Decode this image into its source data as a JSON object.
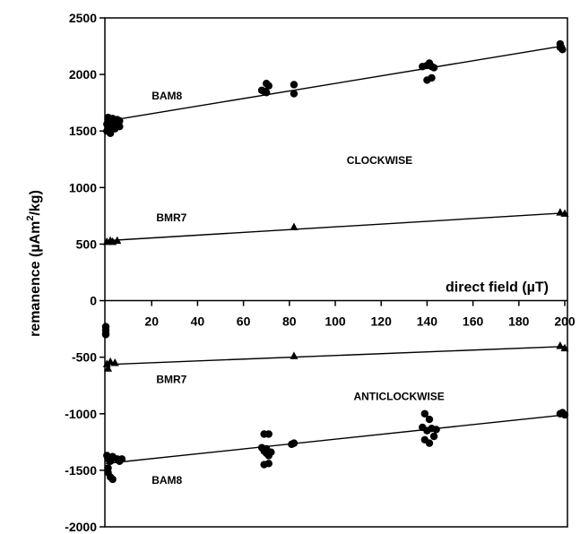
{
  "chart_data": {
    "type": "scatter",
    "xlabel": "direct field (µT)",
    "ylabel_main": "remanence (µAm",
    "ylabel_sup": "2",
    "ylabel_tail": "/kg)",
    "xlim": [
      0,
      200
    ],
    "ylim": [
      -2000,
      2500
    ],
    "x_ticks": [
      20,
      40,
      60,
      80,
      100,
      120,
      140,
      160,
      180,
      200
    ],
    "y_ticks": [
      2500,
      2000,
      1500,
      1000,
      500,
      0,
      -500,
      -1000,
      -1500,
      -2000
    ],
    "grid": false,
    "annotations": [
      {
        "text": "BAM8",
        "x": 20,
        "y": 1780
      },
      {
        "text": "CLOCKWISE",
        "x": 105,
        "y": 1210
      },
      {
        "text": "BMR7",
        "x": 22,
        "y": 700
      },
      {
        "text": "BMR7",
        "x": 22,
        "y": -730
      },
      {
        "text": "ANTICLOCKWISE",
        "x": 108,
        "y": -880
      },
      {
        "text": "BAM8",
        "x": 20,
        "y": -1620
      }
    ],
    "series": [
      {
        "marker": "circle",
        "points": [
          [
            1,
            1620
          ],
          [
            1,
            1600
          ],
          [
            2,
            1580
          ],
          [
            0.5,
            1560
          ],
          [
            1,
            1540
          ],
          [
            2,
            1520
          ],
          [
            0.5,
            1500
          ],
          [
            3,
            1610
          ],
          [
            4,
            1580
          ],
          [
            5,
            1560
          ],
          [
            6,
            1540
          ],
          [
            4,
            1520
          ],
          [
            2,
            1480
          ],
          [
            3,
            1550
          ],
          [
            5,
            1600
          ],
          [
            6,
            1590
          ],
          [
            68,
            1860
          ],
          [
            70,
            1920
          ],
          [
            71,
            1900
          ],
          [
            69,
            1850
          ],
          [
            70,
            1840
          ],
          [
            82,
            1910
          ],
          [
            82,
            1830
          ],
          [
            138,
            2070
          ],
          [
            140,
            2080
          ],
          [
            141,
            2100
          ],
          [
            142,
            2070
          ],
          [
            140,
            1950
          ],
          [
            142,
            1970
          ],
          [
            143,
            2060
          ],
          [
            198,
            2270
          ],
          [
            198,
            2240
          ],
          [
            199,
            2220
          ]
        ],
        "fit": [
          [
            1,
            1590
          ],
          [
            200,
            2255
          ]
        ]
      },
      {
        "marker": "triangle",
        "points": [
          [
            0.5,
            520
          ],
          [
            2,
            530
          ],
          [
            3,
            520
          ],
          [
            5,
            530
          ],
          [
            82,
            650
          ],
          [
            198,
            780
          ],
          [
            200,
            770
          ]
        ],
        "fit": [
          [
            0,
            530
          ],
          [
            200,
            775
          ]
        ]
      },
      {
        "marker": "circle",
        "points": [
          [
            0,
            -230
          ],
          [
            0,
            -260
          ],
          [
            0,
            -290
          ],
          [
            0,
            -300
          ]
        ],
        "fit": null
      },
      {
        "marker": "triangle",
        "points": [
          [
            0.5,
            -560
          ],
          [
            1,
            -600
          ],
          [
            2,
            -540
          ],
          [
            4,
            -550
          ],
          [
            82,
            -490
          ],
          [
            198,
            -400
          ],
          [
            200,
            -420
          ]
        ],
        "fit": [
          [
            0,
            -565
          ],
          [
            200,
            -405
          ]
        ]
      },
      {
        "marker": "circle",
        "points": [
          [
            0.5,
            -1370
          ],
          [
            1,
            -1400
          ],
          [
            2,
            -1420
          ],
          [
            3,
            -1380
          ],
          [
            1,
            -1480
          ],
          [
            1,
            -1520
          ],
          [
            2,
            -1560
          ],
          [
            3,
            -1580
          ],
          [
            5,
            -1400
          ],
          [
            6,
            -1420
          ],
          [
            7,
            -1400
          ],
          [
            69,
            -1180
          ],
          [
            71,
            -1180
          ],
          [
            68,
            -1300
          ],
          [
            69,
            -1330
          ],
          [
            70,
            -1350
          ],
          [
            71,
            -1370
          ],
          [
            72,
            -1340
          ],
          [
            70,
            -1310
          ],
          [
            71,
            -1440
          ],
          [
            69,
            -1450
          ],
          [
            81,
            -1270
          ],
          [
            82,
            -1260
          ],
          [
            139,
            -1000
          ],
          [
            141,
            -1050
          ],
          [
            138,
            -1120
          ],
          [
            140,
            -1150
          ],
          [
            142,
            -1130
          ],
          [
            144,
            -1140
          ],
          [
            139,
            -1230
          ],
          [
            141,
            -1260
          ],
          [
            143,
            -1200
          ],
          [
            198,
            -1000
          ],
          [
            199,
            -990
          ],
          [
            200,
            -1010
          ]
        ],
        "fit": [
          [
            0,
            -1440
          ],
          [
            200,
            -1010
          ]
        ]
      }
    ]
  }
}
